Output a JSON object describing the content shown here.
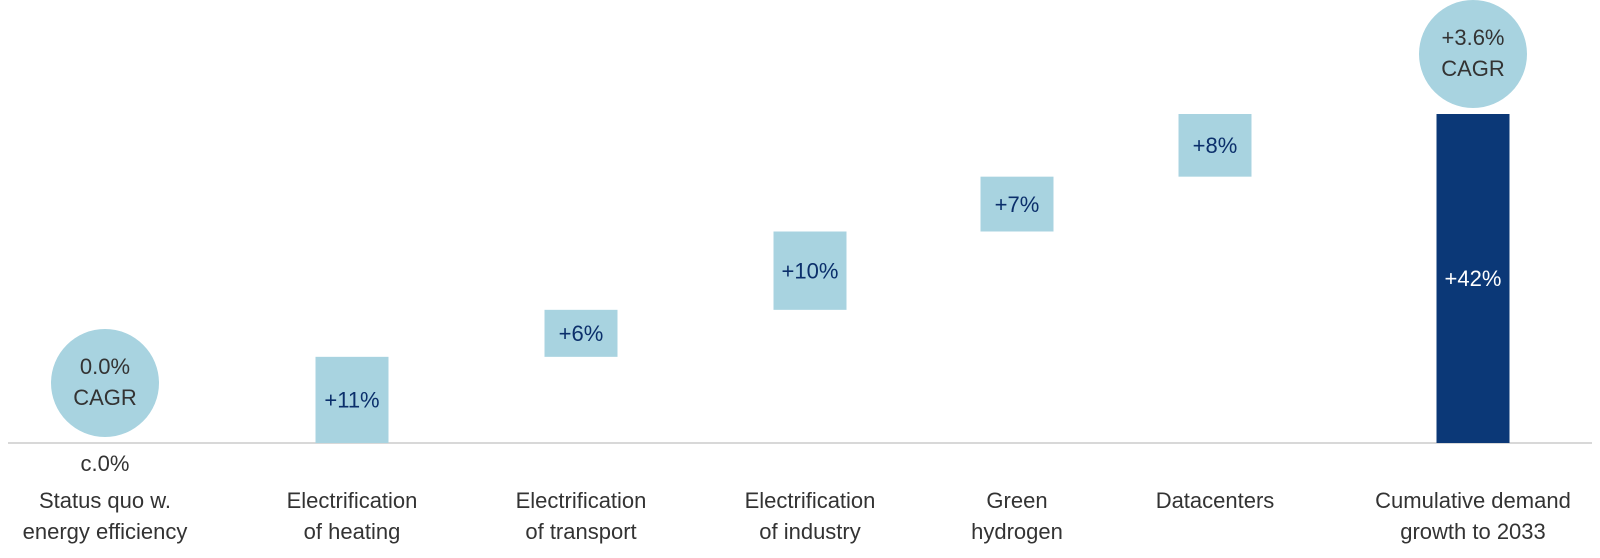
{
  "chart_data": {
    "type": "bar",
    "subtype": "waterfall",
    "categories": [
      [
        "Status quo w.",
        "energy efficiency"
      ],
      [
        "Electrification",
        "of heating"
      ],
      [
        "Electrification",
        "of transport"
      ],
      [
        "Electrification",
        "of industry"
      ],
      [
        "Green",
        "hydrogen"
      ],
      [
        "Datacenters"
      ],
      [
        "Cumulative demand",
        "growth to 2033"
      ]
    ],
    "values": [
      0,
      11,
      6,
      10,
      7,
      8,
      42
    ],
    "value_labels": [
      "c.0%",
      "+11%",
      "+6%",
      "+10%",
      "+7%",
      "+8%",
      "+42%"
    ],
    "is_total": [
      false,
      false,
      false,
      false,
      false,
      false,
      true
    ],
    "ylim": [
      0,
      42
    ],
    "grid": false,
    "cagr_badges": [
      {
        "index": 0,
        "lines": [
          "0.0%",
          "CAGR"
        ]
      },
      {
        "index": 6,
        "lines": [
          "+3.6%",
          "CAGR"
        ]
      }
    ],
    "colors": {
      "increment": "#a8d3e0",
      "total": "#0b3877",
      "badge": "#a8d3e0",
      "label_on_light": "#0b2f6b",
      "label_on_dark": "#ffffff",
      "text": "#333333",
      "baseline": "#cccccc"
    }
  }
}
